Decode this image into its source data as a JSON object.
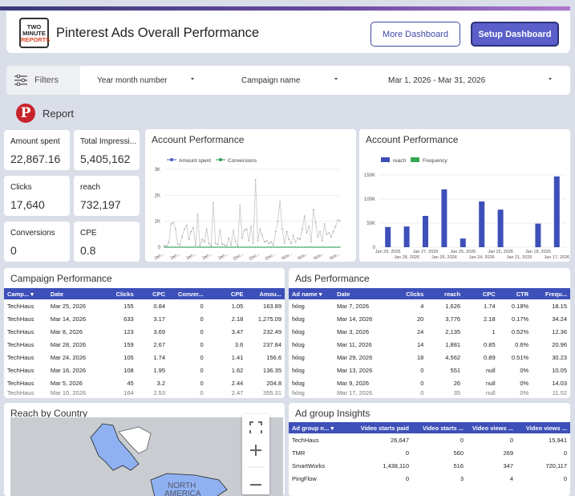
{
  "header": {
    "logo_top": "TWO",
    "logo_mid": "MINUTE",
    "logo_bot": "REPORTS",
    "title": "Pinterest Ads Overall Performance",
    "more_label": "More Dashboard",
    "setup_label": "Setup Dashboard"
  },
  "filters": {
    "label": "Filters",
    "year_month": "Year month number",
    "campaign": "Campaign name",
    "date_range": "Mar 1, 2026 - Mar 31, 2026"
  },
  "report_label": "Report",
  "kpis": [
    {
      "label": "Amount spent",
      "value": "22,867.16"
    },
    {
      "label": "Total Impressi...",
      "value": "5,405,162"
    },
    {
      "label": "Clicks",
      "value": "17,640"
    },
    {
      "label": "reach",
      "value": "732,197"
    },
    {
      "label": "Conversions",
      "value": "0"
    },
    {
      "label": "CPE",
      "value": "0.8"
    }
  ],
  "line_panel": {
    "title": "Account Performance",
    "legend": [
      "Amount spent",
      "Conversions"
    ],
    "yticks": [
      "3K",
      "2K",
      "1K",
      "0"
    ],
    "xticks": [
      "Jan...",
      "Jan...",
      "Jan...",
      "Jan...",
      "Jan...",
      "Dec...",
      "Dec...",
      "Dec...",
      "Nov...",
      "Nov...",
      "Nov...",
      "Nov..."
    ]
  },
  "bar_panel": {
    "title": "Account Performance",
    "legend": [
      "reach",
      "Frequency"
    ],
    "yticks": [
      "150K",
      "100K",
      "50K",
      "0"
    ],
    "xticks_top": [
      "Jan 29, 2026",
      "Jan 27, 2026",
      "Jan 25, 2026",
      "Jan 22, 2026",
      "Jan 18, 2026"
    ],
    "xticks_bot": [
      "Jan 28, 2026",
      "Jan 26, 2026",
      "Jan 24, 2026",
      "Jan 21, 2026",
      "Jan 17, 2026"
    ]
  },
  "chart_data": [
    {
      "type": "line",
      "title": "Account Performance",
      "series": [
        {
          "name": "Amount spent",
          "values": [
            60,
            40,
            180,
            900,
            950,
            700,
            120,
            80,
            400,
            700,
            850,
            300,
            600,
            750,
            80,
            1250,
            60,
            300,
            200,
            700,
            150,
            50,
            1700,
            150,
            100,
            650,
            120,
            80,
            60,
            350,
            80,
            650,
            220,
            50,
            1600,
            350,
            650,
            700,
            250,
            800,
            150,
            2600,
            250,
            700,
            450,
            200,
            250,
            150,
            200,
            80,
            600,
            1000,
            1750,
            700,
            150,
            600,
            300,
            150,
            450,
            200,
            350,
            300,
            700,
            1200,
            550,
            800,
            200,
            1450,
            950,
            400,
            600,
            250,
            900,
            500,
            550,
            400,
            600,
            800,
            1050,
            1000
          ]
        },
        {
          "name": "Conversions",
          "values": [
            0,
            0,
            0,
            0,
            0,
            0,
            0,
            0,
            0,
            0,
            0,
            0,
            0,
            0,
            0,
            0,
            0,
            0,
            0,
            0,
            0,
            0,
            0,
            0,
            0,
            0,
            0,
            0,
            0,
            0,
            0,
            0,
            0,
            0,
            0,
            0,
            0,
            0,
            0,
            0,
            0,
            0,
            0,
            0,
            0,
            0,
            0,
            0,
            0,
            0,
            0,
            0,
            0,
            0,
            0,
            0,
            0,
            0,
            0,
            0,
            0,
            0,
            0,
            0,
            0,
            0,
            0,
            0,
            0,
            0,
            0,
            0,
            0,
            0,
            0,
            0,
            0,
            0,
            0,
            0
          ]
        }
      ],
      "ylim": [
        0,
        3000
      ]
    },
    {
      "type": "bar",
      "title": "Account Performance",
      "categories": [
        "Jan 29, 2026",
        "Jan 28, 2026",
        "Jan 27, 2026",
        "Jan 26, 2026",
        "Jan 25, 2026",
        "Jan 24, 2026",
        "Jan 22, 2026",
        "Jan 21, 2026",
        "Jan 18, 2026",
        "Jan 17, 2026"
      ],
      "series": [
        {
          "name": "reach",
          "values": [
            42000,
            43000,
            65000,
            120000,
            18000,
            95000,
            78000,
            0,
            49000,
            147000
          ]
        },
        {
          "name": "Frequency",
          "values": [
            0,
            0,
            0,
            0,
            0,
            0,
            0,
            0,
            0,
            0
          ]
        }
      ],
      "ylim": [
        0,
        160000
      ]
    }
  ],
  "campaign": {
    "title": "Campaign Performance",
    "headers": [
      "Camp...",
      "Date",
      "Clicks",
      "CPC",
      "Conver...",
      "CPE",
      "Amou..."
    ],
    "rows": [
      [
        "TechHaus",
        "Mar 25, 2026",
        "155",
        "0.84",
        "0",
        "1.05",
        "163.89"
      ],
      [
        "TechHaus",
        "Mar 14, 2026",
        "633",
        "3.17",
        "0",
        "2.18",
        "1,275.09"
      ],
      [
        "TechHaus",
        "Mar 8, 2026",
        "123",
        "3.69",
        "0",
        "3.47",
        "232.49"
      ],
      [
        "TechHaus",
        "Mar 28, 2026",
        "159",
        "2.67",
        "0",
        "3.6",
        "237.84"
      ],
      [
        "TechHaus",
        "Mar 24, 2026",
        "105",
        "1.74",
        "0",
        "1.41",
        "156.6"
      ],
      [
        "TechHaus",
        "Mar 16, 2026",
        "108",
        "1.95",
        "0",
        "1.62",
        "136.35"
      ],
      [
        "TechHaus",
        "Mar 5, 2026",
        "45",
        "3.2",
        "0",
        "2.44",
        "204.8"
      ],
      [
        "TechHaus",
        "Mar 10, 2026",
        "164",
        "2.53",
        "0",
        "2.47",
        "355.31"
      ]
    ]
  },
  "ads": {
    "title": "Ads Performance",
    "headers": [
      "Ad name",
      "Date",
      "Clicks",
      "reach",
      "CPC",
      "CTR",
      "Frequ..."
    ],
    "rows": [
      [
        "fxlog",
        "Mar 7, 2026",
        "4",
        "1,626",
        "1.74",
        "0.18%",
        "18.15"
      ],
      [
        "fxlog",
        "Mar 14, 2026",
        "20",
        "3,776",
        "2.18",
        "0.17%",
        "34.24"
      ],
      [
        "fxlog",
        "Mar 3, 2026",
        "24",
        "2,135",
        "1",
        "0.52%",
        "12.36"
      ],
      [
        "fxlog",
        "Mar 11, 2026",
        "14",
        "1,881",
        "0.85",
        "0.6%",
        "20.96"
      ],
      [
        "fxlog",
        "Mar 29, 2026",
        "18",
        "4,562",
        "0.89",
        "0.51%",
        "30.23"
      ],
      [
        "fxlog",
        "Mar 13, 2026",
        "0",
        "551",
        "null",
        "0%",
        "10.05"
      ],
      [
        "fxlog",
        "Mar 9, 2026",
        "0",
        "26",
        "null",
        "0%",
        "14.03"
      ],
      [
        "fxlog",
        "Mar 17, 2026",
        "0",
        "35",
        "null",
        "0%",
        "11.02"
      ]
    ]
  },
  "map": {
    "title": "Reach by Country",
    "label_north": "NORTH",
    "label_america": "AMERICA"
  },
  "adgroup": {
    "title": "Ad group Insights",
    "headers": [
      "Ad group n...",
      "Video starts paid",
      "Video starts ...",
      "Video views ...",
      "Video views ..."
    ],
    "rows": [
      [
        "TechHaus",
        "26,647",
        "0",
        "0",
        "15,941"
      ],
      [
        "TMR",
        "0",
        "560",
        "269",
        "0"
      ],
      [
        "SmartWorks",
        "1,438,110",
        "516",
        "347",
        "720,117"
      ],
      [
        "PingFlow",
        "0",
        "3",
        "4",
        "0"
      ]
    ]
  }
}
